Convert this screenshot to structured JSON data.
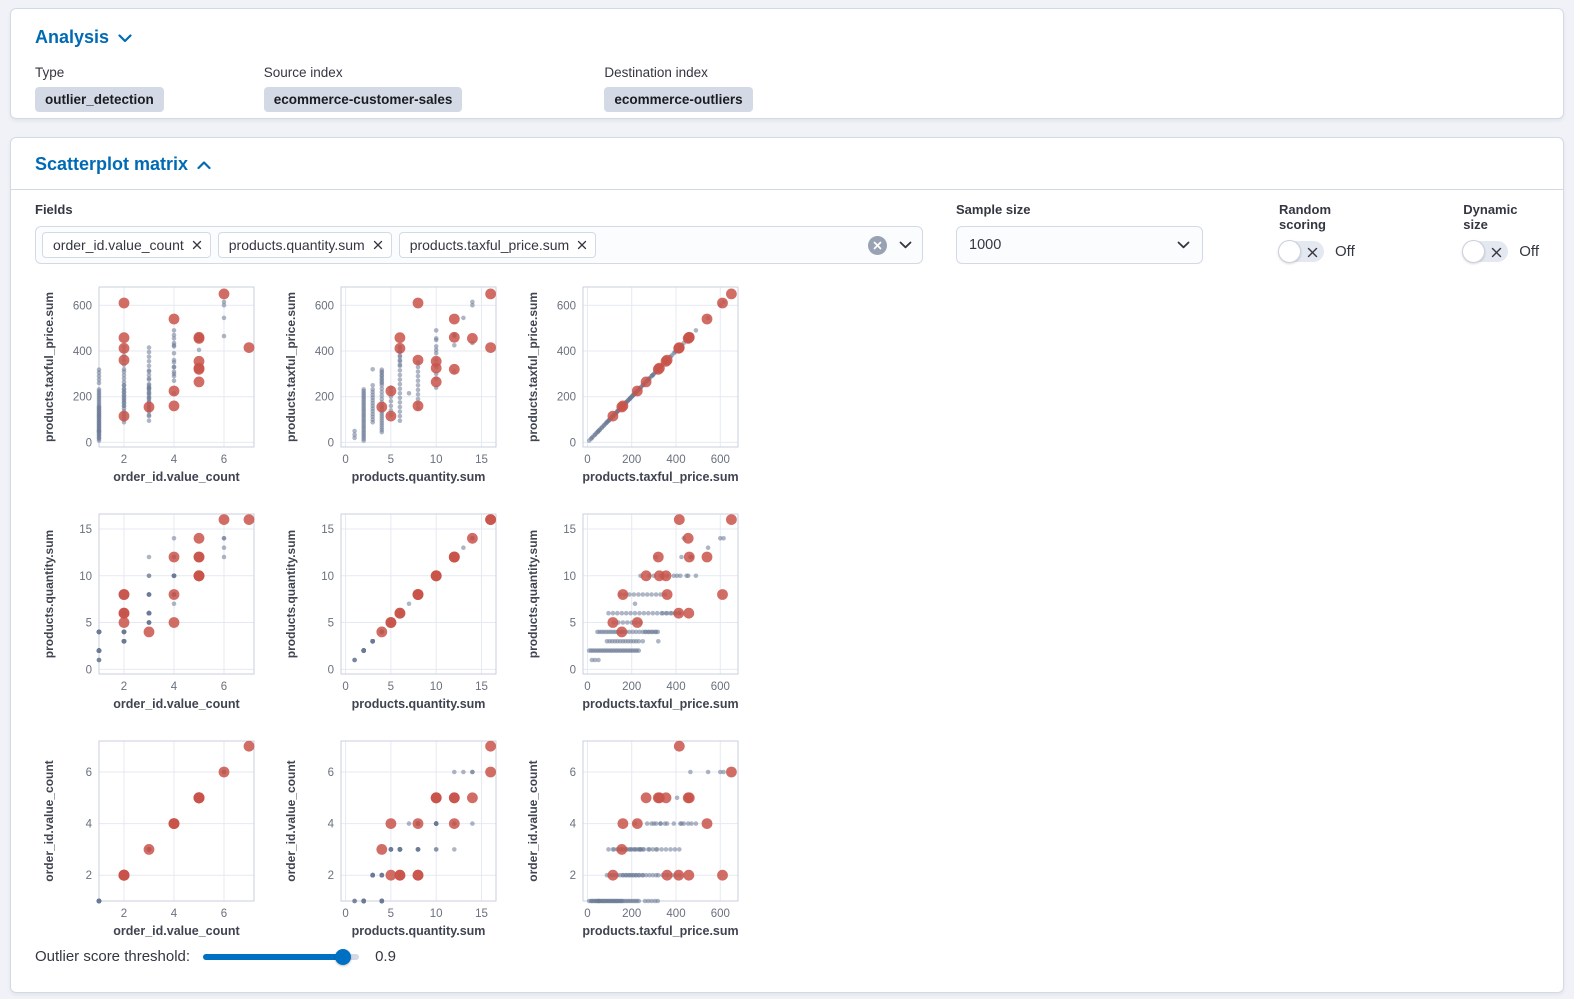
{
  "analysis_panel": {
    "title": "Analysis",
    "descriptors": [
      {
        "label": "Type",
        "value": "outlier_detection"
      },
      {
        "label": "Source index",
        "value": "ecommerce-customer-sales"
      },
      {
        "label": "Destination index",
        "value": "ecommerce-outliers"
      }
    ]
  },
  "scatterplot_panel": {
    "title": "Scatterplot matrix",
    "fields_label": "Fields",
    "selected_fields": [
      "order_id.value_count",
      "products.quantity.sum",
      "products.taxful_price.sum"
    ],
    "sample_size": {
      "label": "Sample size",
      "value": "1000"
    },
    "random_scoring": {
      "label": "Random scoring",
      "state": "Off"
    },
    "dynamic_size": {
      "label": "Dynamic size",
      "state": "Off"
    },
    "threshold": {
      "label": "Outlier score threshold:",
      "value": "0.9",
      "percent": 90
    }
  },
  "colors": {
    "accent_blue": "#006bb4",
    "slider_blue": "#0071c2",
    "dot_gray": "#6b7a96",
    "dot_red": "#c9534a",
    "grid_line": "#e5e9f2",
    "plot_border": "#c9d1de",
    "tick_text": "#69707d",
    "axis_title_text": "#3f4450",
    "badge_bg": "#d3dae6"
  },
  "chart_data": {
    "type": "scatter",
    "title": "Scatterplot matrix of outlier detection fields; red = outliers, gray = inliers",
    "legend_position": "none",
    "grid": true,
    "rows_y": [
      "p",
      "q",
      "c"
    ],
    "cols_x": [
      "c",
      "q",
      "p"
    ],
    "fields": {
      "c": {
        "label": "order_id.value_count",
        "dmin": 1,
        "dmax": 7.2,
        "ticks": [
          2,
          4,
          6
        ]
      },
      "q": {
        "label": "products.quantity.sum",
        "dmin": -0.5,
        "dmax": 16.6,
        "ticks": [
          0,
          5,
          10,
          15
        ]
      },
      "p": {
        "label": "products.taxful_price.sum",
        "dmin": -20,
        "dmax": 680,
        "ticks": [
          0,
          200,
          400,
          600
        ]
      }
    },
    "point_format": [
      "order_id.value_count",
      "products.quantity.sum",
      "products.taxful_price.sum"
    ],
    "points": {
      "gray": [
        [
          1,
          1,
          20
        ],
        [
          1,
          1,
          34
        ],
        [
          1,
          1,
          50
        ],
        [
          1,
          2,
          8
        ],
        [
          1,
          2,
          16
        ],
        [
          1,
          2,
          24
        ],
        [
          1,
          2,
          32
        ],
        [
          1,
          2,
          40
        ],
        [
          1,
          2,
          48
        ],
        [
          1,
          2,
          56
        ],
        [
          1,
          2,
          64
        ],
        [
          1,
          2,
          72
        ],
        [
          1,
          2,
          80
        ],
        [
          1,
          2,
          88
        ],
        [
          1,
          2,
          96
        ],
        [
          1,
          2,
          104
        ],
        [
          1,
          2,
          112
        ],
        [
          1,
          2,
          120
        ],
        [
          1,
          2,
          128
        ],
        [
          1,
          2,
          136
        ],
        [
          1,
          2,
          144
        ],
        [
          1,
          2,
          152
        ],
        [
          1,
          2,
          160
        ],
        [
          1,
          2,
          168
        ],
        [
          1,
          2,
          176
        ],
        [
          1,
          2,
          184
        ],
        [
          1,
          2,
          192
        ],
        [
          1,
          2,
          200
        ],
        [
          1,
          2,
          208
        ],
        [
          1,
          2,
          216
        ],
        [
          1,
          2,
          224
        ],
        [
          1,
          2,
          232
        ],
        [
          1,
          4,
          45
        ],
        [
          1,
          4,
          55
        ],
        [
          1,
          4,
          65
        ],
        [
          1,
          4,
          75
        ],
        [
          1,
          4,
          85
        ],
        [
          1,
          4,
          95
        ],
        [
          1,
          4,
          105
        ],
        [
          1,
          4,
          115
        ],
        [
          1,
          4,
          125
        ],
        [
          1,
          4,
          135
        ],
        [
          1,
          4,
          145
        ],
        [
          1,
          4,
          155
        ],
        [
          1,
          4,
          260
        ],
        [
          1,
          4,
          275
        ],
        [
          1,
          4,
          290
        ],
        [
          1,
          4,
          305
        ],
        [
          1,
          4,
          318
        ],
        [
          2,
          3,
          88
        ],
        [
          2,
          3,
          100
        ],
        [
          2,
          3,
          112
        ],
        [
          2,
          3,
          124
        ],
        [
          2,
          3,
          136
        ],
        [
          2,
          3,
          148
        ],
        [
          2,
          3,
          160
        ],
        [
          2,
          3,
          172
        ],
        [
          2,
          3,
          184
        ],
        [
          2,
          3,
          196
        ],
        [
          2,
          3,
          208
        ],
        [
          2,
          3,
          220
        ],
        [
          2,
          3,
          232
        ],
        [
          2,
          3,
          250
        ],
        [
          2,
          3,
          320
        ],
        [
          2,
          4,
          160
        ],
        [
          2,
          4,
          175
        ],
        [
          2,
          4,
          190
        ],
        [
          2,
          4,
          205
        ],
        [
          2,
          4,
          220
        ],
        [
          2,
          4,
          235
        ],
        [
          2,
          4,
          250
        ],
        [
          2,
          4,
          265
        ],
        [
          2,
          4,
          280
        ],
        [
          2,
          4,
          295
        ],
        [
          2,
          4,
          310
        ],
        [
          2,
          6,
          340
        ],
        [
          2,
          6,
          360
        ],
        [
          2,
          6,
          380
        ],
        [
          2,
          6,
          400
        ],
        [
          2,
          6,
          418
        ],
        [
          3,
          5,
          120
        ],
        [
          3,
          5,
          140
        ],
        [
          3,
          5,
          160
        ],
        [
          3,
          5,
          180
        ],
        [
          3,
          5,
          200
        ],
        [
          3,
          5,
          220
        ],
        [
          3,
          5,
          240
        ],
        [
          3,
          6,
          95
        ],
        [
          3,
          6,
          115
        ],
        [
          3,
          6,
          135
        ],
        [
          3,
          6,
          155
        ],
        [
          3,
          6,
          175
        ],
        [
          3,
          6,
          195
        ],
        [
          3,
          6,
          215
        ],
        [
          3,
          6,
          235
        ],
        [
          3,
          6,
          255
        ],
        [
          3,
          6,
          275
        ],
        [
          3,
          6,
          295
        ],
        [
          3,
          6,
          315
        ],
        [
          3,
          6,
          335
        ],
        [
          3,
          6,
          355
        ],
        [
          3,
          6,
          375
        ],
        [
          3,
          6,
          395
        ],
        [
          3,
          6,
          415
        ],
        [
          3,
          8,
          150
        ],
        [
          3,
          8,
          170
        ],
        [
          3,
          8,
          190
        ],
        [
          3,
          8,
          210
        ],
        [
          3,
          8,
          230
        ],
        [
          3,
          8,
          250
        ],
        [
          3,
          10,
          240
        ],
        [
          3,
          10,
          280
        ],
        [
          3,
          12,
          310
        ],
        [
          4,
          7,
          215
        ],
        [
          4,
          8,
          270
        ],
        [
          4,
          8,
          290
        ],
        [
          4,
          8,
          310
        ],
        [
          4,
          8,
          330
        ],
        [
          4,
          8,
          350
        ],
        [
          4,
          10,
          300
        ],
        [
          4,
          10,
          330
        ],
        [
          4,
          10,
          360
        ],
        [
          4,
          10,
          390
        ],
        [
          4,
          10,
          420
        ],
        [
          4,
          10,
          455
        ],
        [
          4,
          10,
          490
        ],
        [
          4,
          12,
          425
        ],
        [
          4,
          12,
          470
        ],
        [
          4,
          14,
          435
        ],
        [
          5,
          10,
          405
        ],
        [
          5,
          10,
          448
        ],
        [
          5,
          12,
          470
        ],
        [
          6,
          12,
          465
        ],
        [
          6,
          13,
          545
        ],
        [
          6,
          14,
          600
        ],
        [
          6,
          14,
          615
        ]
      ],
      "red": [
        [
          2,
          8,
          610
        ],
        [
          2,
          6,
          458
        ],
        [
          2,
          6,
          412
        ],
        [
          2,
          8,
          360
        ],
        [
          2,
          5,
          115
        ],
        [
          3,
          4,
          155
        ],
        [
          4,
          12,
          540
        ],
        [
          4,
          5,
          225
        ],
        [
          4,
          8,
          160
        ],
        [
          5,
          10,
          265
        ],
        [
          5,
          10,
          325
        ],
        [
          5,
          10,
          355
        ],
        [
          5,
          12,
          460
        ],
        [
          5,
          12,
          320
        ],
        [
          5,
          14,
          455
        ],
        [
          6,
          16,
          650
        ],
        [
          7,
          16,
          415
        ]
      ]
    }
  }
}
